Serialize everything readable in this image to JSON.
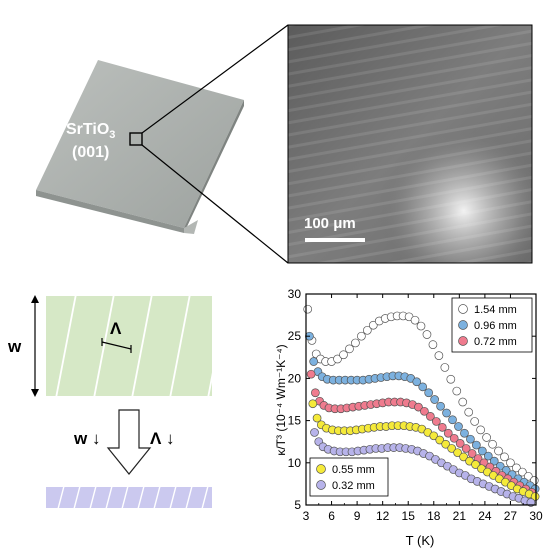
{
  "crystal": {
    "label_line1_base": "SrTiO",
    "label_line1_sub": "3",
    "label_line2": "(001)"
  },
  "microscope": {
    "scale_bar_label": "100 μm"
  },
  "schematic": {
    "width_label": "w",
    "period_label": "Λ",
    "arrow_w_label": "w ↓",
    "arrow_period_label": "Λ ↓"
  },
  "chart_data": {
    "type": "scatter",
    "xlabel": "T (K)",
    "ylabel": "κ/T³ (10⁻⁴ Wm⁻¹K⁻⁴)",
    "xlim": [
      3,
      30
    ],
    "ylim": [
      5,
      30
    ],
    "xticks": [
      3,
      6,
      9,
      12,
      15,
      18,
      21,
      24,
      27,
      30
    ],
    "yticks": [
      5,
      10,
      15,
      20,
      25,
      30
    ],
    "legend_upper": "top-right",
    "legend_lower": "bottom-left",
    "series": [
      {
        "name": "1.54 mm",
        "color": "#ffffff",
        "points": [
          [
            3.2,
            28.2
          ],
          [
            3.7,
            24.5
          ],
          [
            4.2,
            22.9
          ],
          [
            4.7,
            22.3
          ],
          [
            5.3,
            22.0
          ],
          [
            6.0,
            22.0
          ],
          [
            6.7,
            22.3
          ],
          [
            7.4,
            22.8
          ],
          [
            8.1,
            23.5
          ],
          [
            8.8,
            24.2
          ],
          [
            9.5,
            25.0
          ],
          [
            10.2,
            25.7
          ],
          [
            10.9,
            26.3
          ],
          [
            11.6,
            26.8
          ],
          [
            12.3,
            27.1
          ],
          [
            13.0,
            27.3
          ],
          [
            13.7,
            27.4
          ],
          [
            14.4,
            27.4
          ],
          [
            15.1,
            27.3
          ],
          [
            15.8,
            26.9
          ],
          [
            16.5,
            26.2
          ],
          [
            17.2,
            25.2
          ],
          [
            17.9,
            24.0
          ],
          [
            18.6,
            22.7
          ],
          [
            19.3,
            21.3
          ],
          [
            20.0,
            19.9
          ],
          [
            20.7,
            18.5
          ],
          [
            21.4,
            17.2
          ],
          [
            22.1,
            16.0
          ],
          [
            22.8,
            14.9
          ],
          [
            23.5,
            13.9
          ],
          [
            24.2,
            13.0
          ],
          [
            24.9,
            12.2
          ],
          [
            25.6,
            11.4
          ],
          [
            26.3,
            10.7
          ],
          [
            27.0,
            10.0
          ],
          [
            27.7,
            9.4
          ],
          [
            28.4,
            8.9
          ],
          [
            29.1,
            8.4
          ],
          [
            29.8,
            7.9
          ]
        ]
      },
      {
        "name": "0.96 mm",
        "color": "#7cb1df",
        "points": [
          [
            3.4,
            25.0
          ],
          [
            3.9,
            22.0
          ],
          [
            4.4,
            20.8
          ],
          [
            4.9,
            20.2
          ],
          [
            5.5,
            19.9
          ],
          [
            6.2,
            19.8
          ],
          [
            6.9,
            19.8
          ],
          [
            7.6,
            19.8
          ],
          [
            8.3,
            19.8
          ],
          [
            9.0,
            19.8
          ],
          [
            9.7,
            19.8
          ],
          [
            10.4,
            19.9
          ],
          [
            11.1,
            20.0
          ],
          [
            11.8,
            20.1
          ],
          [
            12.5,
            20.2
          ],
          [
            13.2,
            20.3
          ],
          [
            13.9,
            20.3
          ],
          [
            14.6,
            20.2
          ],
          [
            15.3,
            20.0
          ],
          [
            16.0,
            19.6
          ],
          [
            16.7,
            19.0
          ],
          [
            17.4,
            18.3
          ],
          [
            18.1,
            17.5
          ],
          [
            18.8,
            16.7
          ],
          [
            19.5,
            15.9
          ],
          [
            20.2,
            15.1
          ],
          [
            20.9,
            14.3
          ],
          [
            21.6,
            13.5
          ],
          [
            22.3,
            12.8
          ],
          [
            23.0,
            12.1
          ],
          [
            23.7,
            11.4
          ],
          [
            24.4,
            10.8
          ],
          [
            25.1,
            10.2
          ],
          [
            25.8,
            9.6
          ],
          [
            26.5,
            9.1
          ],
          [
            27.2,
            8.6
          ],
          [
            27.9,
            8.1
          ],
          [
            28.6,
            7.7
          ],
          [
            29.3,
            7.3
          ],
          [
            29.9,
            6.9
          ]
        ]
      },
      {
        "name": "0.72 mm",
        "color": "#ef7b8e",
        "points": [
          [
            3.6,
            20.5
          ],
          [
            4.1,
            18.3
          ],
          [
            4.6,
            17.3
          ],
          [
            5.1,
            16.8
          ],
          [
            5.7,
            16.5
          ],
          [
            6.4,
            16.4
          ],
          [
            7.1,
            16.4
          ],
          [
            7.8,
            16.5
          ],
          [
            8.5,
            16.6
          ],
          [
            9.2,
            16.7
          ],
          [
            9.9,
            16.8
          ],
          [
            10.6,
            16.9
          ],
          [
            11.3,
            17.0
          ],
          [
            12.0,
            17.1
          ],
          [
            12.7,
            17.2
          ],
          [
            13.4,
            17.2
          ],
          [
            14.1,
            17.2
          ],
          [
            14.8,
            17.1
          ],
          [
            15.5,
            16.9
          ],
          [
            16.2,
            16.6
          ],
          [
            16.9,
            16.1
          ],
          [
            17.6,
            15.5
          ],
          [
            18.3,
            14.9
          ],
          [
            19.0,
            14.2
          ],
          [
            19.7,
            13.5
          ],
          [
            20.4,
            12.9
          ],
          [
            21.1,
            12.3
          ],
          [
            21.8,
            11.7
          ],
          [
            22.5,
            11.1
          ],
          [
            23.2,
            10.5
          ],
          [
            23.9,
            10.0
          ],
          [
            24.6,
            9.5
          ],
          [
            25.3,
            9.0
          ],
          [
            26.0,
            8.5
          ],
          [
            26.7,
            8.1
          ],
          [
            27.4,
            7.7
          ],
          [
            28.1,
            7.3
          ],
          [
            28.8,
            6.9
          ],
          [
            29.5,
            6.5
          ]
        ]
      },
      {
        "name": "0.55 mm",
        "color": "#f5ea3a",
        "points": [
          [
            3.8,
            17.0
          ],
          [
            4.3,
            15.3
          ],
          [
            4.8,
            14.5
          ],
          [
            5.4,
            14.1
          ],
          [
            6.1,
            13.9
          ],
          [
            6.8,
            13.8
          ],
          [
            7.5,
            13.8
          ],
          [
            8.2,
            13.8
          ],
          [
            8.9,
            13.9
          ],
          [
            9.6,
            14.0
          ],
          [
            10.3,
            14.1
          ],
          [
            11.0,
            14.2
          ],
          [
            11.7,
            14.3
          ],
          [
            12.4,
            14.3
          ],
          [
            13.1,
            14.4
          ],
          [
            13.8,
            14.4
          ],
          [
            14.5,
            14.4
          ],
          [
            15.2,
            14.3
          ],
          [
            15.9,
            14.2
          ],
          [
            16.6,
            14.0
          ],
          [
            17.3,
            13.6
          ],
          [
            18.0,
            13.2
          ],
          [
            18.7,
            12.7
          ],
          [
            19.4,
            12.2
          ],
          [
            20.1,
            11.7
          ],
          [
            20.8,
            11.2
          ],
          [
            21.5,
            10.7
          ],
          [
            22.2,
            10.2
          ],
          [
            22.9,
            9.8
          ],
          [
            23.6,
            9.3
          ],
          [
            24.3,
            8.9
          ],
          [
            25.0,
            8.5
          ],
          [
            25.7,
            8.1
          ],
          [
            26.4,
            7.7
          ],
          [
            27.1,
            7.3
          ],
          [
            27.8,
            6.9
          ],
          [
            28.5,
            6.6
          ],
          [
            29.2,
            6.3
          ],
          [
            29.9,
            6.0
          ]
        ]
      },
      {
        "name": "0.32 mm",
        "color": "#b7b3ea",
        "points": [
          [
            4.0,
            13.6
          ],
          [
            4.5,
            12.5
          ],
          [
            5.0,
            11.9
          ],
          [
            5.6,
            11.6
          ],
          [
            6.3,
            11.4
          ],
          [
            7.0,
            11.3
          ],
          [
            7.7,
            11.3
          ],
          [
            8.4,
            11.3
          ],
          [
            9.1,
            11.4
          ],
          [
            9.8,
            11.5
          ],
          [
            10.5,
            11.6
          ],
          [
            11.2,
            11.7
          ],
          [
            11.9,
            11.7
          ],
          [
            12.6,
            11.8
          ],
          [
            13.3,
            11.8
          ],
          [
            14.0,
            11.8
          ],
          [
            14.7,
            11.7
          ],
          [
            15.4,
            11.6
          ],
          [
            16.1,
            11.4
          ],
          [
            16.8,
            11.1
          ],
          [
            17.5,
            10.8
          ],
          [
            18.2,
            10.4
          ],
          [
            18.9,
            10.0
          ],
          [
            19.6,
            9.6
          ],
          [
            20.3,
            9.2
          ],
          [
            21.0,
            8.8
          ],
          [
            21.7,
            8.5
          ],
          [
            22.4,
            8.1
          ],
          [
            23.1,
            7.8
          ],
          [
            23.8,
            7.5
          ],
          [
            24.5,
            7.2
          ],
          [
            25.2,
            6.9
          ],
          [
            25.9,
            6.6
          ],
          [
            26.6,
            6.3
          ],
          [
            27.3,
            6.0
          ],
          [
            28.0,
            5.8
          ],
          [
            28.7,
            5.5
          ],
          [
            29.4,
            5.3
          ]
        ]
      }
    ]
  }
}
